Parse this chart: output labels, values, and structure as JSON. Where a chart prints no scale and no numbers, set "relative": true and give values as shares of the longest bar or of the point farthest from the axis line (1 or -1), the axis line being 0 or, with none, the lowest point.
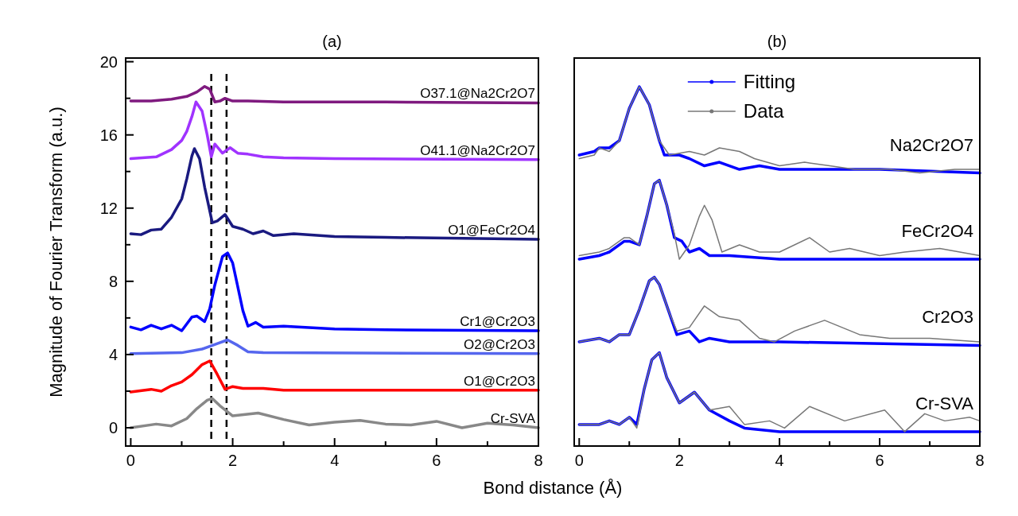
{
  "chart_data": [
    {
      "type": "line",
      "title": "(a)",
      "xlabel": "Bond distance (Å)",
      "ylabel": "Magnitude of Fourier Transform (a.u.)",
      "xlim": [
        -0.1,
        8
      ],
      "ylim": [
        -1,
        20.2
      ],
      "xticks": [
        0,
        {
          "value": 1,
          "label": null
        },
        2,
        {
          "value": 3,
          "label": null
        },
        4,
        {
          "value": 5,
          "label": null
        },
        6,
        {
          "value": 7,
          "label": null
        },
        8
      ],
      "yticks": [
        0,
        {
          "value": 2,
          "label": null
        },
        4,
        {
          "value": 6,
          "label": null
        },
        8,
        {
          "value": 10,
          "label": null
        },
        12,
        {
          "value": 14,
          "label": null
        },
        16,
        {
          "value": 18,
          "label": null
        },
        20
      ],
      "legend": false,
      "ref_lines": [
        {
          "axis": "x",
          "value": 1.58,
          "color": "#000000",
          "line_style": "dashed"
        },
        {
          "axis": "x",
          "value": 1.88,
          "color": "#000000",
          "line_style": "dashed"
        }
      ],
      "series": [
        {
          "name": "O37.1@Na2Cr2O7",
          "color": "#7f1a7f",
          "x": [
            0,
            0.4,
            0.8,
            1.1,
            1.3,
            1.45,
            1.55,
            1.65,
            1.75,
            1.85,
            2.0,
            2.3,
            3,
            5,
            8
          ],
          "values": [
            17.85,
            17.85,
            17.95,
            18.1,
            18.35,
            18.65,
            18.5,
            17.8,
            17.85,
            18.0,
            17.85,
            17.85,
            17.8,
            17.8,
            17.75
          ]
        },
        {
          "name": "O41.1@Na2Cr2O7",
          "color": "#a033ff",
          "x": [
            0,
            0.5,
            0.8,
            1.0,
            1.1,
            1.2,
            1.28,
            1.4,
            1.5,
            1.58,
            1.65,
            1.8,
            1.95,
            2.1,
            2.3,
            2.6,
            3,
            4,
            8
          ],
          "values": [
            14.7,
            14.8,
            15.2,
            15.7,
            16.2,
            17.0,
            17.8,
            17.3,
            16.0,
            14.8,
            15.5,
            15.0,
            15.3,
            15.0,
            14.95,
            14.8,
            14.75,
            14.7,
            14.65
          ]
        },
        {
          "name": "O1@FeCr2O4",
          "color": "#1a1a80",
          "x": [
            0,
            0.2,
            0.4,
            0.6,
            0.8,
            1.0,
            1.1,
            1.2,
            1.25,
            1.35,
            1.45,
            1.55,
            1.6,
            1.7,
            1.85,
            2.0,
            2.2,
            2.4,
            2.6,
            2.8,
            3.2,
            4,
            5,
            8
          ],
          "values": [
            10.6,
            10.55,
            10.8,
            10.85,
            11.5,
            12.5,
            13.6,
            14.85,
            15.25,
            14.7,
            13.15,
            11.85,
            11.2,
            11.3,
            11.65,
            11.0,
            10.85,
            10.6,
            10.75,
            10.5,
            10.6,
            10.45,
            10.4,
            10.3
          ]
        },
        {
          "name": "Cr1@Cr2O3",
          "color": "#0000ff",
          "x": [
            0,
            0.2,
            0.4,
            0.6,
            0.8,
            1.0,
            1.2,
            1.3,
            1.45,
            1.55,
            1.65,
            1.8,
            1.9,
            2.0,
            2.1,
            2.2,
            2.3,
            2.45,
            2.6,
            3,
            4,
            5,
            8
          ],
          "values": [
            5.5,
            5.35,
            5.6,
            5.4,
            5.6,
            5.3,
            6.05,
            6.1,
            5.8,
            6.5,
            7.8,
            9.35,
            9.55,
            9.0,
            7.7,
            6.4,
            5.55,
            5.75,
            5.5,
            5.55,
            5.4,
            5.35,
            5.3
          ]
        },
        {
          "name": "O2@Cr2O3",
          "color": "#5566ee",
          "x": [
            0,
            1,
            1.4,
            1.7,
            1.9,
            2.1,
            2.3,
            2.6,
            8
          ],
          "values": [
            4.05,
            4.1,
            4.3,
            4.6,
            4.8,
            4.5,
            4.15,
            4.1,
            4.05
          ]
        },
        {
          "name": "O1@Cr2O3",
          "color": "#ff0000",
          "x": [
            0,
            0.4,
            0.6,
            0.8,
            1.0,
            1.2,
            1.4,
            1.55,
            1.7,
            1.85,
            2.0,
            2.2,
            2.6,
            3,
            8
          ],
          "values": [
            1.95,
            2.1,
            2.0,
            2.3,
            2.5,
            2.9,
            3.45,
            3.65,
            2.9,
            2.1,
            2.25,
            2.15,
            2.15,
            2.05,
            2.05
          ]
        },
        {
          "name": "Cr-SVA",
          "color": "#888888",
          "x": [
            0,
            0.5,
            0.8,
            1.1,
            1.3,
            1.5,
            1.6,
            1.75,
            2.0,
            2.5,
            3,
            3.5,
            4,
            4.5,
            5,
            5.5,
            6,
            6.5,
            7,
            7.5,
            8
          ],
          "values": [
            0.0,
            0.2,
            0.1,
            0.5,
            1.05,
            1.5,
            1.6,
            1.2,
            0.65,
            0.8,
            0.45,
            0.15,
            0.3,
            0.4,
            0.2,
            0.15,
            0.35,
            0.0,
            0.25,
            0.15,
            0.0
          ]
        }
      ]
    },
    {
      "type": "line",
      "title": "(b)",
      "relative": true,
      "xlim": [
        -0.1,
        8
      ],
      "xticks": [
        0,
        {
          "value": 1,
          "label": null
        },
        2,
        {
          "value": 3,
          "label": null
        },
        4,
        {
          "value": 5,
          "label": null
        },
        6,
        {
          "value": 7,
          "label": null
        },
        8
      ],
      "legend": "top",
      "annotations": [
        "Na2Cr2O7",
        "FeCr2O4",
        "Cr2O3",
        "Cr-SVA"
      ],
      "series": [
        {
          "name": "Fitting",
          "color": "#0000ff",
          "x": [
            0,
            0.3,
            0.4,
            0.6,
            0.8,
            1.0,
            1.2,
            1.4,
            1.6,
            1.7,
            2.0,
            2.2,
            2.5,
            2.8,
            3.2,
            3.6,
            4,
            5,
            6,
            8
          ],
          "values": [
            0.81,
            0.82,
            0.83,
            0.83,
            0.85,
            0.94,
            1.0,
            0.95,
            0.85,
            0.81,
            0.81,
            0.8,
            0.78,
            0.79,
            0.77,
            0.78,
            0.77,
            0.77,
            0.77,
            0.76
          ]
        },
        {
          "name": "Data",
          "color": "#777777",
          "x": [
            0,
            0.3,
            0.4,
            0.6,
            0.8,
            1.0,
            1.2,
            1.4,
            1.6,
            1.8,
            2.2,
            2.5,
            2.8,
            3.2,
            3.5,
            4.0,
            4.5,
            5.0,
            5.5,
            6.2,
            6.8,
            7.5,
            8
          ],
          "values": [
            0.8,
            0.81,
            0.83,
            0.82,
            0.85,
            0.94,
            1.0,
            0.95,
            0.85,
            0.81,
            0.82,
            0.81,
            0.83,
            0.82,
            0.8,
            0.78,
            0.79,
            0.78,
            0.77,
            0.77,
            0.76,
            0.77,
            0.77
          ]
        },
        {
          "color": "#0000ff",
          "x": [
            0,
            0.4,
            0.6,
            0.9,
            1.0,
            1.2,
            1.35,
            1.5,
            1.6,
            1.75,
            1.9,
            2.05,
            2.2,
            2.4,
            2.6,
            3,
            4,
            8
          ],
          "values": [
            0.52,
            0.53,
            0.54,
            0.57,
            0.57,
            0.56,
            0.64,
            0.73,
            0.74,
            0.67,
            0.58,
            0.57,
            0.54,
            0.55,
            0.53,
            0.53,
            0.52,
            0.52
          ]
        },
        {
          "color": "#777777",
          "x": [
            0,
            0.4,
            0.6,
            0.9,
            1.0,
            1.2,
            1.35,
            1.5,
            1.6,
            1.75,
            1.9,
            2.0,
            2.2,
            2.4,
            2.5,
            2.65,
            2.85,
            3.2,
            3.6,
            4,
            4.6,
            5.0,
            5.4,
            6,
            6.5,
            7.2,
            8
          ],
          "values": [
            0.53,
            0.54,
            0.55,
            0.58,
            0.58,
            0.56,
            0.64,
            0.73,
            0.74,
            0.67,
            0.59,
            0.52,
            0.56,
            0.64,
            0.67,
            0.63,
            0.54,
            0.56,
            0.54,
            0.54,
            0.58,
            0.54,
            0.55,
            0.53,
            0.54,
            0.55,
            0.53
          ]
        },
        {
          "color": "#0000ff",
          "x": [
            0,
            0.4,
            0.6,
            0.8,
            1.0,
            1.2,
            1.4,
            1.5,
            1.6,
            1.8,
            1.95,
            2.2,
            2.4,
            2.6,
            3.0,
            4.0,
            8
          ],
          "values": [
            0.29,
            0.3,
            0.29,
            0.31,
            0.31,
            0.38,
            0.46,
            0.47,
            0.45,
            0.37,
            0.31,
            0.32,
            0.29,
            0.3,
            0.29,
            0.29,
            0.28
          ]
        },
        {
          "color": "#777777",
          "x": [
            0,
            0.4,
            0.6,
            0.8,
            1.0,
            1.2,
            1.4,
            1.5,
            1.6,
            1.8,
            1.95,
            2.2,
            2.5,
            2.8,
            3.2,
            3.6,
            3.9,
            4.3,
            4.9,
            5.6,
            6.2,
            7,
            8
          ],
          "values": [
            0.29,
            0.3,
            0.29,
            0.31,
            0.31,
            0.38,
            0.46,
            0.47,
            0.45,
            0.37,
            0.32,
            0.33,
            0.39,
            0.36,
            0.35,
            0.3,
            0.29,
            0.32,
            0.35,
            0.31,
            0.3,
            0.3,
            0.29
          ]
        },
        {
          "color": "#0000ff",
          "x": [
            0,
            0.4,
            0.6,
            0.8,
            1.0,
            1.15,
            1.3,
            1.45,
            1.6,
            1.75,
            2.0,
            2.3,
            2.6,
            3.0,
            3.3,
            4,
            8
          ],
          "values": [
            0.06,
            0.06,
            0.07,
            0.06,
            0.08,
            0.06,
            0.16,
            0.24,
            0.26,
            0.19,
            0.12,
            0.15,
            0.1,
            0.07,
            0.05,
            0.04,
            0.04
          ]
        },
        {
          "color": "#777777",
          "x": [
            0,
            0.4,
            0.6,
            0.8,
            1.0,
            1.15,
            1.3,
            1.45,
            1.6,
            1.75,
            2.0,
            2.3,
            2.6,
            3.0,
            3.3,
            3.8,
            4.1,
            4.6,
            5.3,
            6.1,
            6.5,
            6.9,
            7.3,
            7.8,
            8
          ],
          "values": [
            0.06,
            0.06,
            0.07,
            0.06,
            0.08,
            0.05,
            0.16,
            0.24,
            0.26,
            0.19,
            0.12,
            0.15,
            0.1,
            0.11,
            0.06,
            0.07,
            0.05,
            0.11,
            0.07,
            0.1,
            0.04,
            0.09,
            0.07,
            0.08,
            0.07
          ]
        }
      ]
    }
  ]
}
